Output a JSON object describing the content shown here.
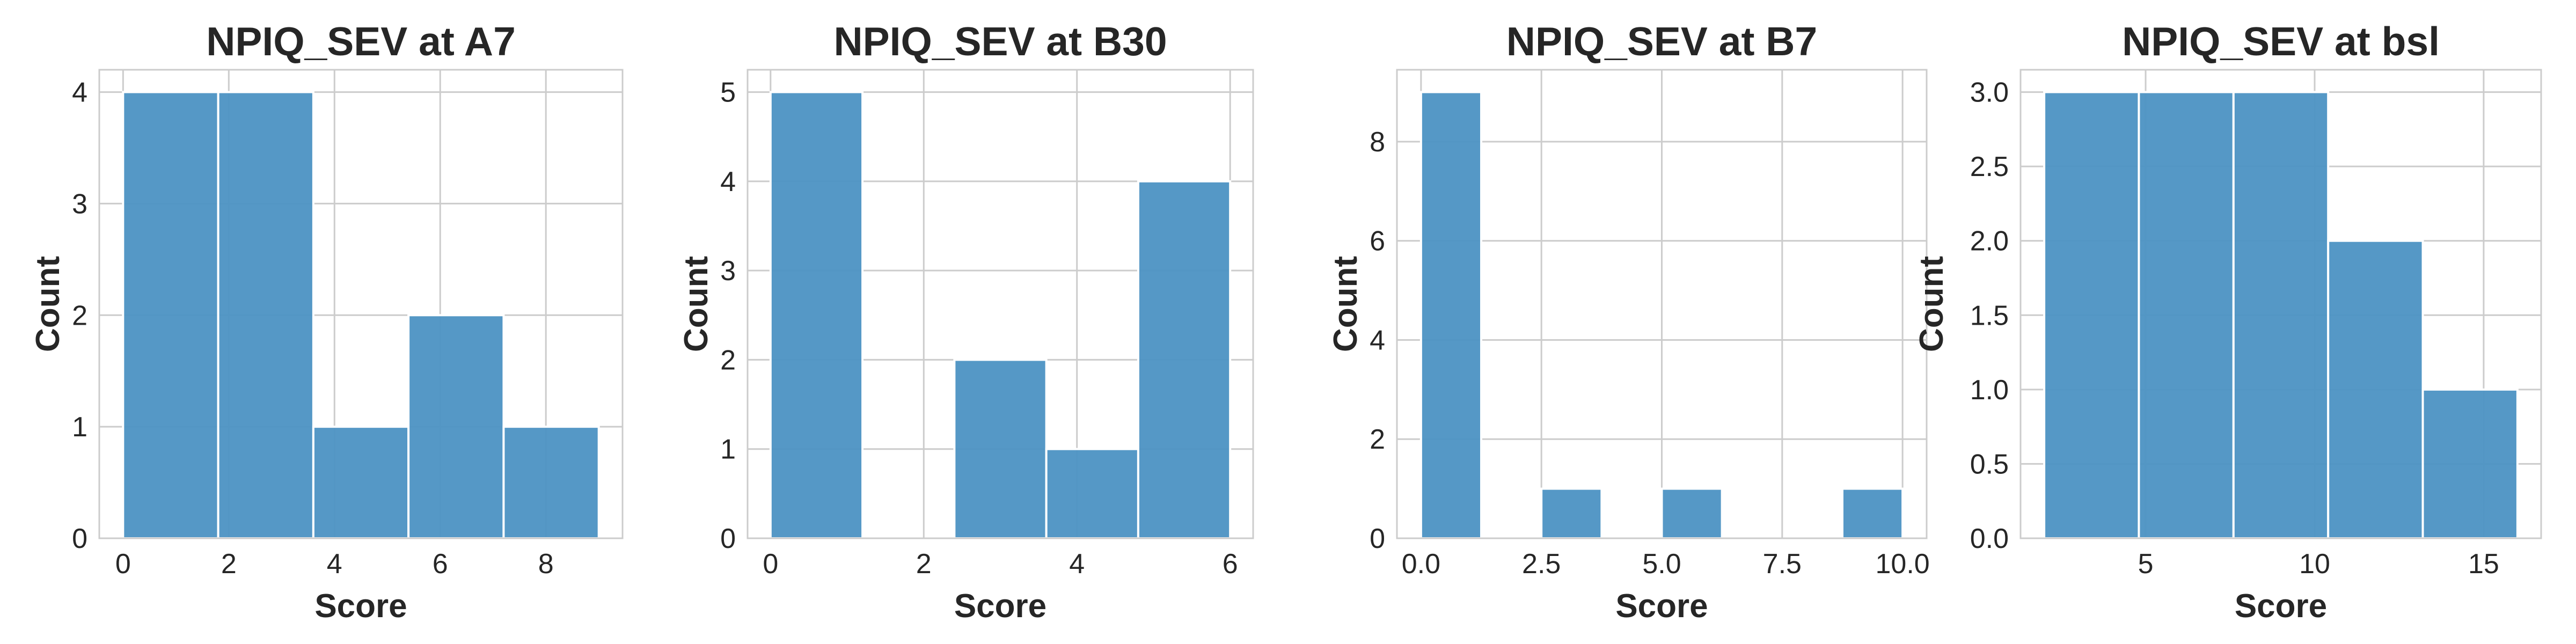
{
  "style": {
    "bar_color": "#4c92c3",
    "grid_color": "#cccccc",
    "frame_color": "#cccccc"
  },
  "chart_data": [
    {
      "type": "bar",
      "title": "NPIQ_SEV at A7",
      "xlabel": "Score",
      "ylabel": "Count",
      "xlim": [
        -0.45,
        9.45
      ],
      "ylim": [
        0,
        4.2
      ],
      "xticks": [
        0,
        2,
        4,
        6,
        8
      ],
      "xtick_labels": [
        "0",
        "2",
        "4",
        "6",
        "8"
      ],
      "yticks": [
        0,
        1,
        2,
        3,
        4
      ],
      "ytick_labels": [
        "0",
        "1",
        "2",
        "3",
        "4"
      ],
      "bins": [
        {
          "start": 0.0,
          "end": 1.8,
          "count": 4
        },
        {
          "start": 1.8,
          "end": 3.6,
          "count": 4
        },
        {
          "start": 3.6,
          "end": 5.4,
          "count": 1
        },
        {
          "start": 5.4,
          "end": 7.2,
          "count": 2
        },
        {
          "start": 7.2,
          "end": 9.0,
          "count": 1
        }
      ],
      "grid": true
    },
    {
      "type": "bar",
      "title": "NPIQ_SEV at B30",
      "xlabel": "Score",
      "ylabel": "Count",
      "xlim": [
        -0.3,
        6.3
      ],
      "ylim": [
        0,
        5.25
      ],
      "xticks": [
        0,
        2,
        4,
        6
      ],
      "xtick_labels": [
        "0",
        "2",
        "4",
        "6"
      ],
      "yticks": [
        0,
        1,
        2,
        3,
        4,
        5
      ],
      "ytick_labels": [
        "0",
        "1",
        "2",
        "3",
        "4",
        "5"
      ],
      "bins": [
        {
          "start": 0.0,
          "end": 1.2,
          "count": 5
        },
        {
          "start": 1.2,
          "end": 2.4,
          "count": 0
        },
        {
          "start": 2.4,
          "end": 3.6,
          "count": 2
        },
        {
          "start": 3.6,
          "end": 4.8,
          "count": 1
        },
        {
          "start": 4.8,
          "end": 6.0,
          "count": 4
        }
      ],
      "grid": true
    },
    {
      "type": "bar",
      "title": "NPIQ_SEV at B7",
      "xlabel": "Score",
      "ylabel": "Count",
      "xlim": [
        -0.5,
        10.5
      ],
      "ylim": [
        0,
        9.45
      ],
      "xticks": [
        0,
        2.5,
        5,
        7.5,
        10
      ],
      "xtick_labels": [
        "0.0",
        "2.5",
        "5.0",
        "7.5",
        "10.0"
      ],
      "yticks": [
        0,
        2,
        4,
        6,
        8
      ],
      "ytick_labels": [
        "0",
        "2",
        "4",
        "6",
        "8"
      ],
      "bins": [
        {
          "start": 0.0,
          "end": 1.25,
          "count": 9
        },
        {
          "start": 1.25,
          "end": 2.5,
          "count": 0
        },
        {
          "start": 2.5,
          "end": 3.75,
          "count": 1
        },
        {
          "start": 3.75,
          "end": 5.0,
          "count": 0
        },
        {
          "start": 5.0,
          "end": 6.25,
          "count": 1
        },
        {
          "start": 6.25,
          "end": 7.5,
          "count": 0
        },
        {
          "start": 7.5,
          "end": 8.75,
          "count": 0
        },
        {
          "start": 8.75,
          "end": 10.0,
          "count": 1
        }
      ],
      "grid": true
    },
    {
      "type": "bar",
      "title": "NPIQ_SEV at bsl",
      "xlabel": "Score",
      "ylabel": "Count",
      "xlim": [
        1.3,
        16.7
      ],
      "ylim": [
        0,
        3.15
      ],
      "xticks": [
        5,
        10,
        15
      ],
      "xtick_labels": [
        "5",
        "10",
        "15"
      ],
      "yticks": [
        0,
        0.5,
        1.0,
        1.5,
        2.0,
        2.5,
        3.0
      ],
      "ytick_labels": [
        "0.0",
        "0.5",
        "1.0",
        "1.5",
        "2.0",
        "2.5",
        "3.0"
      ],
      "bins": [
        {
          "start": 2.0,
          "end": 4.8,
          "count": 3
        },
        {
          "start": 4.8,
          "end": 7.6,
          "count": 3
        },
        {
          "start": 7.6,
          "end": 10.4,
          "count": 3
        },
        {
          "start": 10.4,
          "end": 13.2,
          "count": 2
        },
        {
          "start": 13.2,
          "end": 16.0,
          "count": 1
        }
      ],
      "grid": true
    }
  ]
}
